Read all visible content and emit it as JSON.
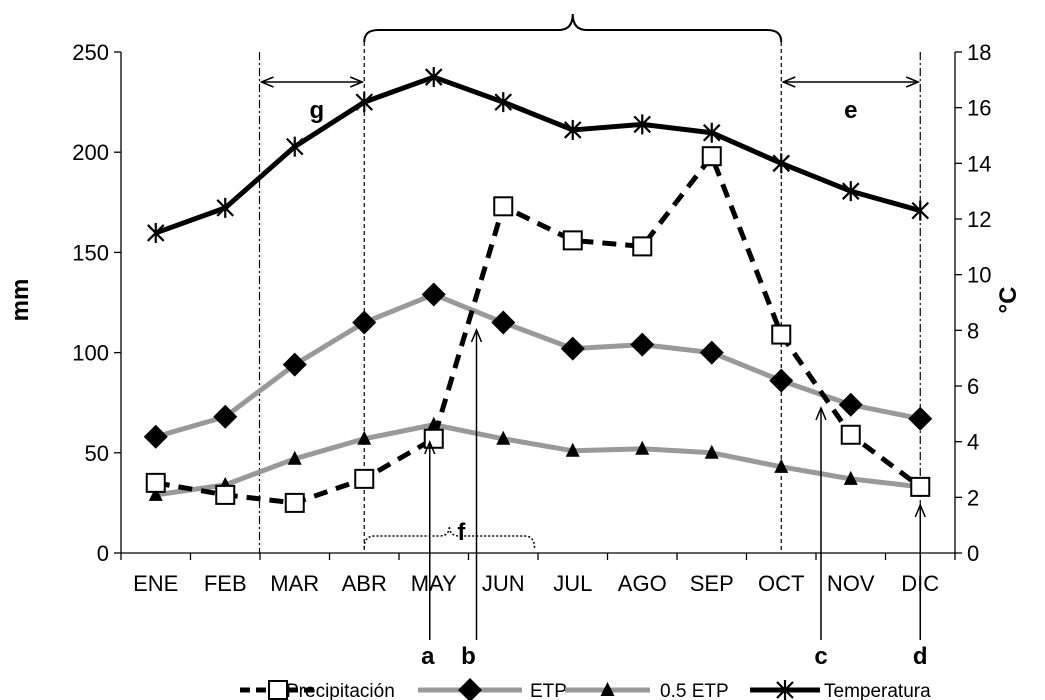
{
  "chart_data": {
    "type": "line",
    "categories": [
      "ENE",
      "FEB",
      "MAR",
      "ABR",
      "MAY",
      "JUN",
      "JUL",
      "AGO",
      "SEP",
      "OCT",
      "NOV",
      "DIC"
    ],
    "ylabel": "mm",
    "y2label": "°C",
    "ylim": [
      0,
      250
    ],
    "yticks": [
      0,
      50,
      100,
      150,
      200,
      250
    ],
    "y2lim": [
      0,
      18
    ],
    "y2ticks": [
      0,
      2,
      4,
      6,
      8,
      10,
      12,
      14,
      16,
      18
    ],
    "grid": false,
    "legend_position": "bottom",
    "series": [
      {
        "name": "Precipitación",
        "axis": "left",
        "style": "dashed",
        "marker": "open-square",
        "color": "#000000",
        "values": [
          35,
          29,
          25,
          37,
          57,
          173,
          156,
          153,
          198,
          109,
          59,
          33
        ]
      },
      {
        "name": "ETP",
        "axis": "left",
        "style": "solid",
        "marker": "diamond",
        "color": "#999999",
        "values": [
          58,
          68,
          94,
          115,
          129,
          115,
          102,
          104,
          100,
          86,
          74,
          67
        ]
      },
      {
        "name": "0.5 ETP",
        "axis": "left",
        "style": "solid",
        "marker": "triangle",
        "color": "#999999",
        "values": [
          29,
          34,
          47,
          57,
          64,
          57,
          51,
          52,
          50,
          43,
          37,
          33
        ]
      },
      {
        "name": "Temperatura",
        "axis": "right",
        "style": "solid",
        "marker": "asterisk",
        "color": "#000000",
        "values": [
          11.5,
          12.4,
          14.6,
          16.2,
          17.1,
          16.2,
          15.2,
          15.4,
          15.1,
          14.0,
          13.0,
          12.3
        ]
      }
    ],
    "annotations": {
      "a": "a",
      "b": "b",
      "c": "c",
      "d": "d",
      "e": "e",
      "f": "f",
      "g": "g"
    }
  }
}
